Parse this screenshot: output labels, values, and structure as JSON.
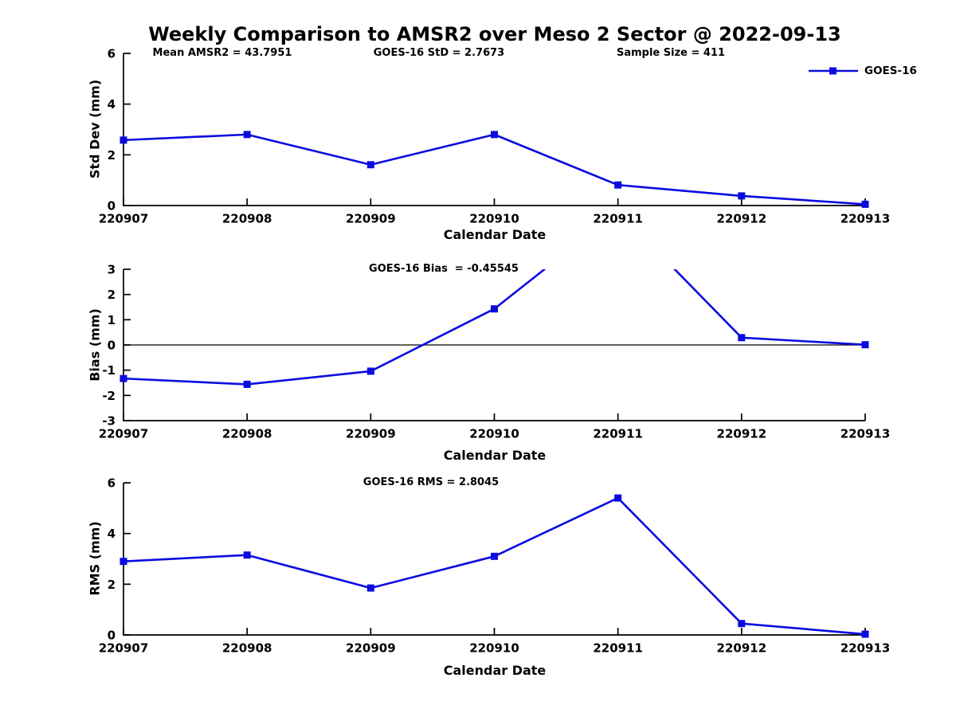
{
  "title": "Weekly Comparison to AMSR2 over Meso 2 Sector @ 2022-09-13",
  "colors": {
    "series": "#0b0be0",
    "axis": "#000000",
    "text": "#000000"
  },
  "legend": {
    "label": "GOES-16"
  },
  "chart_data": [
    {
      "id": "std-dev",
      "type": "line",
      "annotations": [
        "Mean AMSR2 = 43.7951",
        "GOES-16 StD = 2.7673",
        "Sample Size = 411"
      ],
      "ylabel": "Std Dev (mm)",
      "xlabel": "Calendar Date",
      "categories": [
        "220907",
        "220908",
        "220909",
        "220910",
        "220911",
        "220912",
        "220913"
      ],
      "series": [
        {
          "name": "GOES-16",
          "values": [
            2.58,
            2.8,
            1.61,
            2.8,
            0.81,
            0.38,
            0.05
          ]
        }
      ],
      "ylim": [
        0,
        6
      ],
      "yticks": [
        0,
        2,
        4,
        6
      ],
      "zero_line": false,
      "grid": false,
      "legend_position": "top-right",
      "marker": "square"
    },
    {
      "id": "bias",
      "type": "line",
      "annotations": [
        "GOES-16 Bias  = -0.45545"
      ],
      "ylabel": "Bias (mm)",
      "xlabel": "Calendar Date",
      "categories": [
        "220907",
        "220908",
        "220909",
        "220910",
        "220911",
        "220912",
        "220913"
      ],
      "series": [
        {
          "name": "GOES-16",
          "values": [
            -1.33,
            -1.56,
            -1.04,
            1.43,
            5.3,
            0.29,
            0.01
          ]
        }
      ],
      "note": "value at 220911 (~5.3) exceeds axis max and is clipped at top of plot",
      "ylim": [
        -3,
        3
      ],
      "yticks": [
        -3,
        -2,
        -1,
        0,
        1,
        2,
        3
      ],
      "zero_line": true,
      "grid": false,
      "legend_position": "none",
      "marker": "square"
    },
    {
      "id": "rms",
      "type": "line",
      "annotations": [
        "GOES-16 RMS = 2.8045"
      ],
      "ylabel": "RMS (mm)",
      "xlabel": "Calendar Date",
      "categories": [
        "220907",
        "220908",
        "220909",
        "220910",
        "220911",
        "220912",
        "220913"
      ],
      "series": [
        {
          "name": "GOES-16",
          "values": [
            2.9,
            3.15,
            1.85,
            3.1,
            5.4,
            0.45,
            0.03
          ]
        }
      ],
      "ylim": [
        0,
        6
      ],
      "yticks": [
        0,
        2,
        4,
        6
      ],
      "zero_line": false,
      "grid": false,
      "legend_position": "none",
      "marker": "square"
    }
  ]
}
